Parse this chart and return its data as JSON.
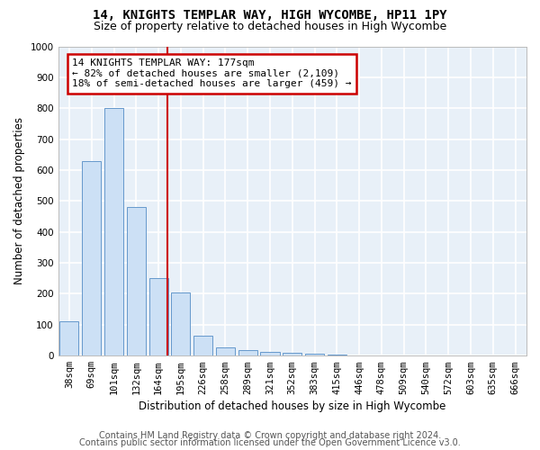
{
  "title1": "14, KNIGHTS TEMPLAR WAY, HIGH WYCOMBE, HP11 1PY",
  "title2": "Size of property relative to detached houses in High Wycombe",
  "xlabel": "Distribution of detached houses by size in High Wycombe",
  "ylabel": "Number of detached properties",
  "bar_color": "#cce0f5",
  "bar_edge_color": "#6699cc",
  "background_color": "#e8f0f8",
  "grid_color": "#ffffff",
  "categories": [
    "38sqm",
    "69sqm",
    "101sqm",
    "132sqm",
    "164sqm",
    "195sqm",
    "226sqm",
    "258sqm",
    "289sqm",
    "321sqm",
    "352sqm",
    "383sqm",
    "415sqm",
    "446sqm",
    "478sqm",
    "509sqm",
    "540sqm",
    "572sqm",
    "603sqm",
    "635sqm",
    "666sqm"
  ],
  "values": [
    110,
    630,
    800,
    480,
    250,
    205,
    65,
    27,
    18,
    12,
    8,
    5,
    3,
    2,
    1,
    0,
    0,
    0,
    0,
    0,
    0
  ],
  "ylim": [
    0,
    1000
  ],
  "yticks": [
    0,
    100,
    200,
    300,
    400,
    500,
    600,
    700,
    800,
    900,
    1000
  ],
  "annotation_text": "14 KNIGHTS TEMPLAR WAY: 177sqm\n← 82% of detached houses are smaller (2,109)\n18% of semi-detached houses are larger (459) →",
  "annotation_box_color": "#ffffff",
  "annotation_border_color": "#cc0000",
  "footer1": "Contains HM Land Registry data © Crown copyright and database right 2024.",
  "footer2": "Contains public sector information licensed under the Open Government Licence v3.0.",
  "title_fontsize": 10,
  "subtitle_fontsize": 9,
  "axis_label_fontsize": 8.5,
  "tick_fontsize": 7.5,
  "footer_fontsize": 7,
  "annotation_fontsize": 8
}
